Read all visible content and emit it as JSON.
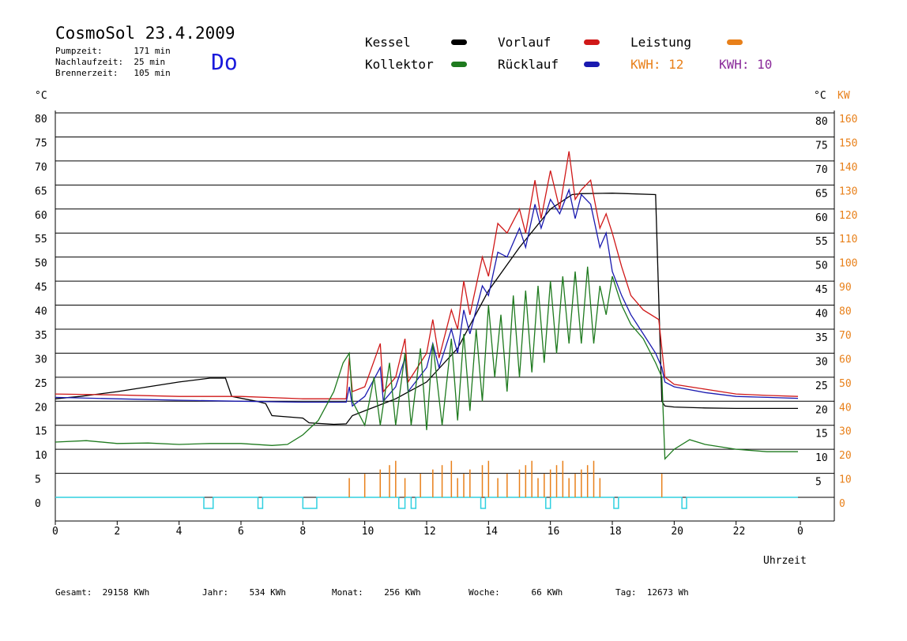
{
  "header": {
    "title": "CosmoSol 23.4.2009",
    "day": "Do",
    "stats": [
      {
        "label": "Pumpzeit:",
        "value": "171 min"
      },
      {
        "label": "Nachlaufzeit:",
        "value": "25 min"
      },
      {
        "label": "Brennerzeit:",
        "value": "105 min"
      }
    ]
  },
  "legend": {
    "kessel": "Kessel",
    "kollektor": "Kollektor",
    "vorlauf": "Vorlauf",
    "ruecklauf": "Rücklauf",
    "leistung": "Leistung",
    "kwh1": "KWH: 12",
    "kwh2": "KWH: 10"
  },
  "colors": {
    "kessel": "#000000",
    "kollektor": "#1e7a1e",
    "vorlauf": "#d01818",
    "ruecklauf": "#1a1ab0",
    "leistung": "#e8801a",
    "kwh2": "#8a2a9a",
    "pump": "#30d0e0"
  },
  "footer": {
    "gesamt": "Gesamt:  29158 KWh",
    "jahr": "Jahr:    534 KWh",
    "monat": "Monat:    256 KWh",
    "woche": "Woche:      66 KWh",
    "tag": "Tag:  12673 Wh"
  },
  "chart_data": {
    "type": "line",
    "xlabel": "Uhrzeit",
    "ylabel_left": "°C",
    "ylabel_right_1": "°C",
    "ylabel_right_2": "KW",
    "x_ticks": [
      "0",
      "2",
      "4",
      "6",
      "8",
      "10",
      "12",
      "14",
      "16",
      "18",
      "20",
      "22",
      "0"
    ],
    "y_left_ticks": [
      "0",
      "5",
      "10",
      "15",
      "20",
      "25",
      "30",
      "35",
      "40",
      "45",
      "50",
      "55",
      "60",
      "65",
      "70",
      "75",
      "80"
    ],
    "y_right_ticks": [
      "5",
      "10",
      "15",
      "20",
      "25",
      "30",
      "35",
      "40",
      "45",
      "50",
      "55",
      "60",
      "65",
      "70",
      "75",
      "80"
    ],
    "y_kw_ticks": [
      "0",
      "10",
      "20",
      "30",
      "40",
      "50",
      "60",
      "70",
      "80",
      "90",
      "100",
      "110",
      "120",
      "130",
      "140",
      "150",
      "160"
    ],
    "xlim": [
      0,
      24
    ],
    "ylim": [
      0,
      80
    ],
    "grid": true,
    "series": [
      {
        "name": "Kessel",
        "key": "kessel",
        "points": [
          [
            0,
            20.5
          ],
          [
            0.8,
            21
          ],
          [
            2,
            22
          ],
          [
            3,
            23
          ],
          [
            4,
            24
          ],
          [
            5,
            24.8
          ],
          [
            5.5,
            24.8
          ],
          [
            5.7,
            21
          ],
          [
            6.5,
            20
          ],
          [
            6.8,
            19.5
          ],
          [
            7,
            17
          ],
          [
            8,
            16.5
          ],
          [
            8.2,
            15.5
          ],
          [
            9,
            15.2
          ],
          [
            9.4,
            15.3
          ],
          [
            9.6,
            17
          ],
          [
            10,
            18
          ],
          [
            11,
            20.5
          ],
          [
            12,
            24
          ],
          [
            13,
            31
          ],
          [
            14,
            43
          ],
          [
            15,
            52
          ],
          [
            16,
            60
          ],
          [
            16.7,
            63
          ],
          [
            17,
            63.2
          ],
          [
            18,
            63.3
          ],
          [
            19.4,
            63
          ],
          [
            19.6,
            20
          ],
          [
            19.7,
            19
          ],
          [
            20,
            18.8
          ],
          [
            21,
            18.6
          ],
          [
            22,
            18.5
          ],
          [
            23,
            18.5
          ],
          [
            24,
            18.5
          ]
        ]
      },
      {
        "name": "Vorlauf",
        "key": "vorlauf",
        "points": [
          [
            0,
            21.5
          ],
          [
            2,
            21.3
          ],
          [
            4,
            21
          ],
          [
            6,
            21
          ],
          [
            8,
            20.5
          ],
          [
            9.4,
            20.5
          ],
          [
            9.5,
            29
          ],
          [
            9.6,
            22
          ],
          [
            10,
            23
          ],
          [
            10.5,
            32
          ],
          [
            10.6,
            22
          ],
          [
            11,
            25
          ],
          [
            11.3,
            33
          ],
          [
            11.4,
            24
          ],
          [
            12,
            30
          ],
          [
            12.2,
            37
          ],
          [
            12.4,
            29
          ],
          [
            12.8,
            39
          ],
          [
            13,
            35
          ],
          [
            13.2,
            45
          ],
          [
            13.4,
            38
          ],
          [
            13.8,
            50
          ],
          [
            14,
            46
          ],
          [
            14.3,
            57
          ],
          [
            14.6,
            55
          ],
          [
            15,
            60
          ],
          [
            15.2,
            55
          ],
          [
            15.5,
            66
          ],
          [
            15.7,
            58
          ],
          [
            16,
            68
          ],
          [
            16.3,
            60
          ],
          [
            16.6,
            72
          ],
          [
            16.8,
            62
          ],
          [
            17,
            64
          ],
          [
            17.3,
            66
          ],
          [
            17.6,
            56
          ],
          [
            17.8,
            59
          ],
          [
            18,
            55
          ],
          [
            18.3,
            48
          ],
          [
            18.6,
            42
          ],
          [
            19,
            39
          ],
          [
            19.5,
            37
          ],
          [
            19.6,
            31
          ],
          [
            19.7,
            25
          ],
          [
            20,
            23.5
          ],
          [
            21,
            22.5
          ],
          [
            22,
            21.5
          ],
          [
            23,
            21.2
          ],
          [
            24,
            21
          ]
        ]
      },
      {
        "name": "Rücklauf",
        "key": "ruecklauf",
        "points": [
          [
            0,
            20.8
          ],
          [
            2,
            20.5
          ],
          [
            4,
            20.2
          ],
          [
            6,
            20
          ],
          [
            8,
            19.8
          ],
          [
            9.4,
            19.8
          ],
          [
            9.5,
            23
          ],
          [
            9.6,
            19
          ],
          [
            10,
            21
          ],
          [
            10.5,
            27
          ],
          [
            10.6,
            20
          ],
          [
            11,
            23
          ],
          [
            11.3,
            29
          ],
          [
            11.4,
            22
          ],
          [
            12,
            27
          ],
          [
            12.2,
            32
          ],
          [
            12.4,
            27
          ],
          [
            12.8,
            35
          ],
          [
            13,
            30
          ],
          [
            13.2,
            39
          ],
          [
            13.4,
            34
          ],
          [
            13.8,
            44
          ],
          [
            14,
            42
          ],
          [
            14.3,
            51
          ],
          [
            14.6,
            50
          ],
          [
            15,
            56
          ],
          [
            15.2,
            52
          ],
          [
            15.5,
            61
          ],
          [
            15.7,
            56
          ],
          [
            16,
            62
          ],
          [
            16.3,
            59
          ],
          [
            16.6,
            64
          ],
          [
            16.8,
            58
          ],
          [
            17,
            63
          ],
          [
            17.3,
            61
          ],
          [
            17.6,
            52
          ],
          [
            17.8,
            55
          ],
          [
            18,
            47
          ],
          [
            18.3,
            42
          ],
          [
            18.6,
            38
          ],
          [
            19,
            34
          ],
          [
            19.4,
            30
          ],
          [
            19.6,
            27
          ],
          [
            19.7,
            24
          ],
          [
            20,
            23
          ],
          [
            21,
            21.8
          ],
          [
            22,
            21
          ],
          [
            23,
            20.8
          ],
          [
            24,
            20.6
          ]
        ]
      },
      {
        "name": "Kollektor",
        "key": "kollektor",
        "points": [
          [
            0,
            11.5
          ],
          [
            1,
            11.8
          ],
          [
            2,
            11.2
          ],
          [
            3,
            11.3
          ],
          [
            4,
            11
          ],
          [
            5,
            11.2
          ],
          [
            6,
            11.2
          ],
          [
            7,
            10.8
          ],
          [
            7.5,
            11
          ],
          [
            8,
            13
          ],
          [
            8.5,
            16
          ],
          [
            9,
            22
          ],
          [
            9.3,
            28
          ],
          [
            9.5,
            30
          ],
          [
            9.6,
            20
          ],
          [
            10,
            15
          ],
          [
            10.3,
            25
          ],
          [
            10.5,
            15
          ],
          [
            10.8,
            28
          ],
          [
            11,
            15
          ],
          [
            11.3,
            30
          ],
          [
            11.5,
            15
          ],
          [
            11.8,
            31
          ],
          [
            12,
            14
          ],
          [
            12.2,
            32
          ],
          [
            12.5,
            15
          ],
          [
            12.8,
            33
          ],
          [
            13,
            16
          ],
          [
            13.2,
            34
          ],
          [
            13.4,
            18
          ],
          [
            13.6,
            35
          ],
          [
            13.8,
            20
          ],
          [
            14,
            40
          ],
          [
            14.2,
            25
          ],
          [
            14.4,
            38
          ],
          [
            14.6,
            22
          ],
          [
            14.8,
            42
          ],
          [
            15,
            25
          ],
          [
            15.2,
            43
          ],
          [
            15.4,
            26
          ],
          [
            15.6,
            44
          ],
          [
            15.8,
            28
          ],
          [
            16,
            45
          ],
          [
            16.2,
            30
          ],
          [
            16.4,
            46
          ],
          [
            16.6,
            32
          ],
          [
            16.8,
            47
          ],
          [
            17,
            32
          ],
          [
            17.2,
            48
          ],
          [
            17.4,
            32
          ],
          [
            17.6,
            44
          ],
          [
            17.8,
            38
          ],
          [
            18,
            46
          ],
          [
            18.3,
            40
          ],
          [
            18.6,
            36
          ],
          [
            19,
            33
          ],
          [
            19.4,
            28
          ],
          [
            19.6,
            25
          ],
          [
            19.7,
            8
          ],
          [
            20,
            10
          ],
          [
            20.5,
            12
          ],
          [
            21,
            11
          ],
          [
            22,
            10
          ],
          [
            23,
            9.5
          ],
          [
            24,
            9.5
          ]
        ]
      }
    ]
  }
}
